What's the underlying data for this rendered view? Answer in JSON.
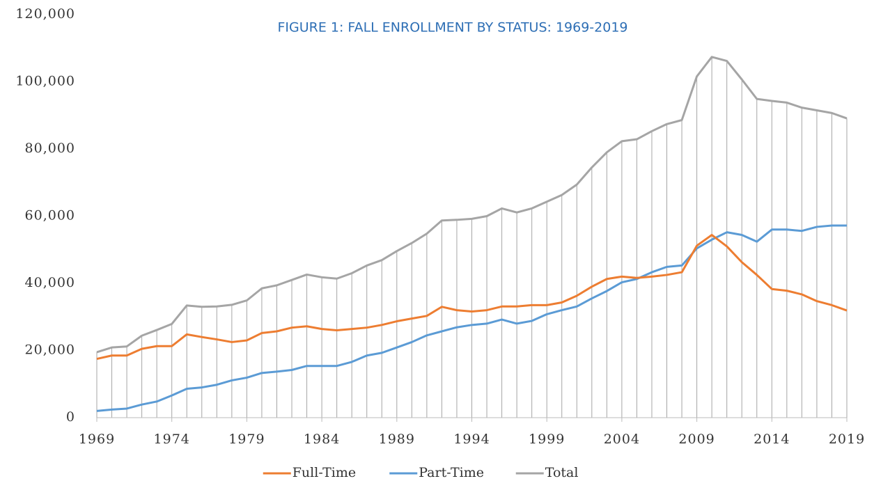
{
  "chart_data": {
    "type": "line",
    "title": "FIGURE 1: FALL ENROLLMENT BY STATUS: 1969-2019",
    "x": [
      1969,
      1970,
      1971,
      1972,
      1973,
      1974,
      1975,
      1976,
      1977,
      1978,
      1979,
      1980,
      1981,
      1982,
      1983,
      1984,
      1985,
      1986,
      1987,
      1988,
      1989,
      1990,
      1991,
      1992,
      1993,
      1994,
      1995,
      1996,
      1997,
      1998,
      1999,
      2000,
      2001,
      2002,
      2003,
      2004,
      2005,
      2006,
      2007,
      2008,
      2009,
      2010,
      2011,
      2012,
      2013,
      2014,
      2015,
      2016,
      2017,
      2018,
      2019
    ],
    "xlim": [
      1969,
      2019
    ],
    "xticks": [
      1969,
      1974,
      1979,
      1984,
      1989,
      1994,
      1999,
      2004,
      2009,
      2014,
      2019
    ],
    "ylim": [
      0,
      120000
    ],
    "yticks": [
      {
        "value": 0,
        "label": "0"
      },
      {
        "value": 20000,
        "label": "20,000"
      },
      {
        "value": 40000,
        "label": "40,000"
      },
      {
        "value": 60000,
        "label": "60,000"
      },
      {
        "value": 80000,
        "label": "80,000"
      },
      {
        "value": 100000,
        "label": "100,000"
      },
      {
        "value": 120000,
        "label": "120,000"
      }
    ],
    "drop_lines": true,
    "legend": "bottom",
    "series": [
      {
        "name": "Full-Time",
        "color": "#ed7d31",
        "values": [
          17500,
          18500,
          18500,
          20500,
          21300,
          21300,
          24800,
          24000,
          23300,
          22500,
          23000,
          25200,
          25700,
          26800,
          27200,
          26400,
          26000,
          26400,
          26800,
          27600,
          28700,
          29500,
          30300,
          33000,
          32000,
          31600,
          32000,
          33100,
          33100,
          33500,
          33500,
          34300,
          36300,
          39000,
          41300,
          42000,
          41600,
          42000,
          42500,
          43300,
          51200,
          54400,
          51000,
          46300,
          42500,
          38300,
          37800,
          36700,
          34700,
          33500,
          31900
        ]
      },
      {
        "name": "Part-Time",
        "color": "#5b9bd5",
        "values": [
          2000,
          2400,
          2700,
          3900,
          4800,
          6600,
          8600,
          9000,
          9800,
          11100,
          11900,
          13300,
          13700,
          14200,
          15400,
          15400,
          15400,
          16600,
          18500,
          19300,
          20900,
          22500,
          24500,
          25700,
          26900,
          27600,
          28000,
          29200,
          28000,
          28800,
          30800,
          32000,
          33100,
          35500,
          37700,
          40300,
          41300,
          43300,
          44900,
          45300,
          50400,
          53000,
          55200,
          54400,
          52400,
          56000,
          56000,
          55600,
          56800,
          57200,
          57200
        ]
      },
      {
        "name": "Total",
        "color": "#a5a5a5",
        "values": [
          19500,
          20900,
          21200,
          24400,
          26100,
          27900,
          33400,
          33000,
          33100,
          33600,
          34900,
          38500,
          39400,
          41000,
          42600,
          41800,
          41400,
          43000,
          45300,
          46900,
          49600,
          52000,
          54800,
          58700,
          58900,
          59200,
          60000,
          62300,
          61100,
          62300,
          64300,
          66300,
          69400,
          74500,
          79000,
          82300,
          82900,
          85300,
          87400,
          88600,
          101600,
          107400,
          106200,
          100700,
          94900,
          94300,
          93800,
          92300,
          91500,
          90700,
          89100
        ]
      }
    ]
  }
}
